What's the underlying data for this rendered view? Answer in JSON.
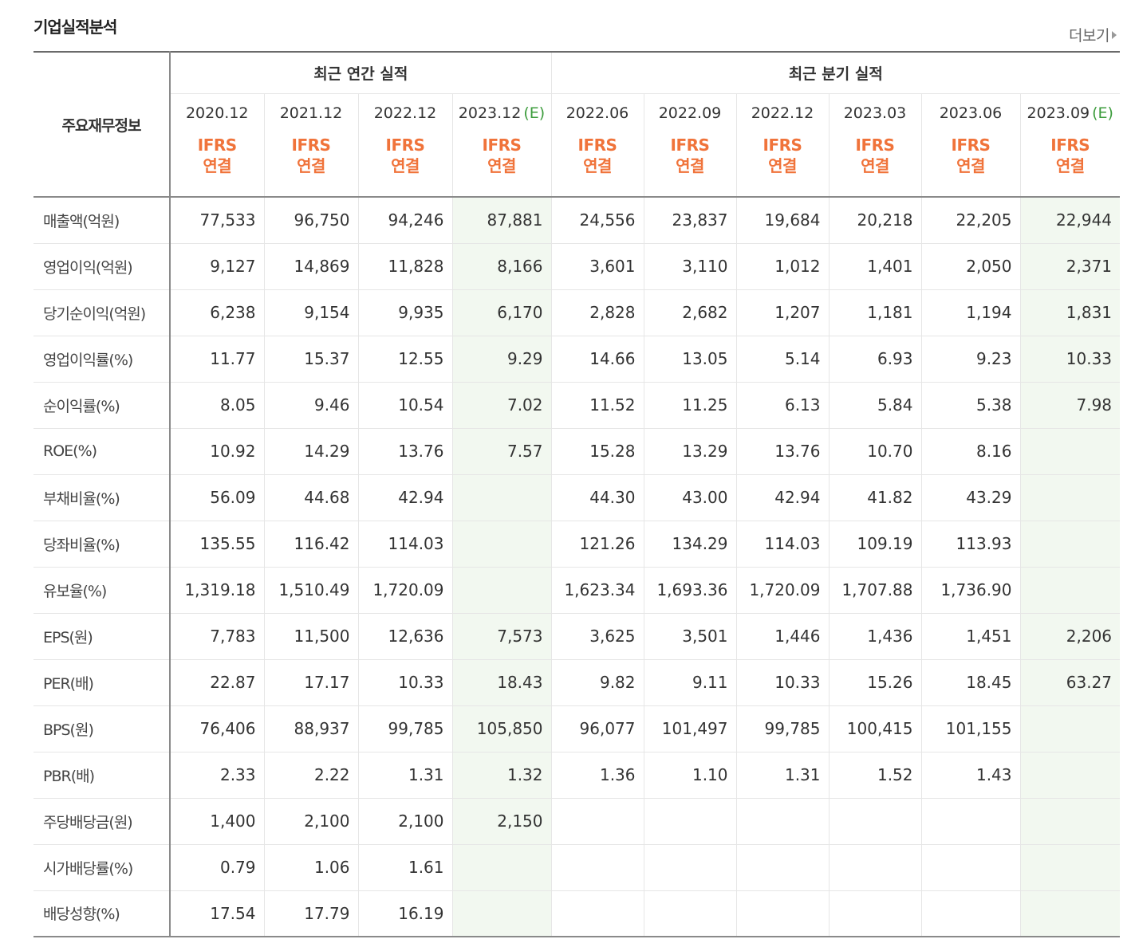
{
  "header": {
    "title": "기업실적분석",
    "more_label": "더보기"
  },
  "table": {
    "label_header": "주요재무정보",
    "groups": [
      {
        "label": "최근 연간 실적",
        "span": 4
      },
      {
        "label": "최근 분기 실적",
        "span": 6
      }
    ],
    "periods": [
      {
        "date": "2020.12",
        "est": ""
      },
      {
        "date": "2021.12",
        "est": ""
      },
      {
        "date": "2022.12",
        "est": ""
      },
      {
        "date": "2023.12",
        "est": "(E)"
      },
      {
        "date": "2022.06",
        "est": ""
      },
      {
        "date": "2022.09",
        "est": ""
      },
      {
        "date": "2022.12",
        "est": ""
      },
      {
        "date": "2023.03",
        "est": ""
      },
      {
        "date": "2023.06",
        "est": ""
      },
      {
        "date": "2023.09",
        "est": "(E)"
      }
    ],
    "standard_line1": "IFRS",
    "standard_line2": "연결",
    "rows": [
      {
        "label": "매출액(억원)",
        "values": [
          "77,533",
          "96,750",
          "94,246",
          "87,881",
          "24,556",
          "23,837",
          "19,684",
          "20,218",
          "22,205",
          "22,944"
        ]
      },
      {
        "label": "영업이익(억원)",
        "values": [
          "9,127",
          "14,869",
          "11,828",
          "8,166",
          "3,601",
          "3,110",
          "1,012",
          "1,401",
          "2,050",
          "2,371"
        ]
      },
      {
        "label": "당기순이익(억원)",
        "values": [
          "6,238",
          "9,154",
          "9,935",
          "6,170",
          "2,828",
          "2,682",
          "1,207",
          "1,181",
          "1,194",
          "1,831"
        ]
      },
      {
        "label": "영업이익률(%)",
        "values": [
          "11.77",
          "15.37",
          "12.55",
          "9.29",
          "14.66",
          "13.05",
          "5.14",
          "6.93",
          "9.23",
          "10.33"
        ]
      },
      {
        "label": "순이익률(%)",
        "values": [
          "8.05",
          "9.46",
          "10.54",
          "7.02",
          "11.52",
          "11.25",
          "6.13",
          "5.84",
          "5.38",
          "7.98"
        ]
      },
      {
        "label": "ROE(%)",
        "values": [
          "10.92",
          "14.29",
          "13.76",
          "7.57",
          "15.28",
          "13.29",
          "13.76",
          "10.70",
          "8.16",
          ""
        ]
      },
      {
        "label": "부채비율(%)",
        "values": [
          "56.09",
          "44.68",
          "42.94",
          "",
          "44.30",
          "43.00",
          "42.94",
          "41.82",
          "43.29",
          ""
        ]
      },
      {
        "label": "당좌비율(%)",
        "values": [
          "135.55",
          "116.42",
          "114.03",
          "",
          "121.26",
          "134.29",
          "114.03",
          "109.19",
          "113.93",
          ""
        ]
      },
      {
        "label": "유보율(%)",
        "values": [
          "1,319.18",
          "1,510.49",
          "1,720.09",
          "",
          "1,623.34",
          "1,693.36",
          "1,720.09",
          "1,707.88",
          "1,736.90",
          ""
        ]
      },
      {
        "label": "EPS(원)",
        "values": [
          "7,783",
          "11,500",
          "12,636",
          "7,573",
          "3,625",
          "3,501",
          "1,446",
          "1,436",
          "1,451",
          "2,206"
        ]
      },
      {
        "label": "PER(배)",
        "values": [
          "22.87",
          "17.17",
          "10.33",
          "18.43",
          "9.82",
          "9.11",
          "10.33",
          "15.26",
          "18.45",
          "63.27"
        ]
      },
      {
        "label": "BPS(원)",
        "values": [
          "76,406",
          "88,937",
          "99,785",
          "105,850",
          "96,077",
          "101,497",
          "99,785",
          "100,415",
          "101,155",
          ""
        ]
      },
      {
        "label": "PBR(배)",
        "values": [
          "2.33",
          "2.22",
          "1.31",
          "1.32",
          "1.36",
          "1.10",
          "1.31",
          "1.52",
          "1.43",
          ""
        ]
      },
      {
        "label": "주당배당금(원)",
        "values": [
          "1,400",
          "2,100",
          "2,100",
          "2,150",
          "",
          "",
          "",
          "",
          "",
          ""
        ]
      },
      {
        "label": "시가배당률(%)",
        "values": [
          "0.79",
          "1.06",
          "1.61",
          "",
          "",
          "",
          "",
          "",
          "",
          ""
        ]
      },
      {
        "label": "배당성향(%)",
        "values": [
          "17.54",
          "17.79",
          "16.19",
          "",
          "",
          "",
          "",
          "",
          "",
          ""
        ]
      }
    ],
    "group_end_rows": [
      2,
      5,
      8,
      12
    ]
  }
}
